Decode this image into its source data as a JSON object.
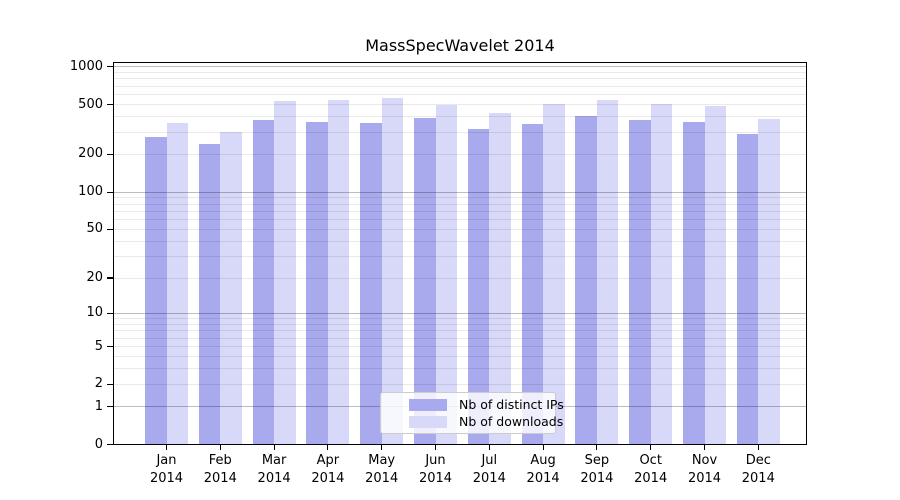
{
  "chart_data": {
    "type": "bar",
    "title": "MassSpecWavelet 2014",
    "categories": [
      "Jan",
      "Feb",
      "Mar",
      "Apr",
      "May",
      "Jun",
      "Jul",
      "Aug",
      "Sep",
      "Oct",
      "Nov",
      "Dec"
    ],
    "category_year": "2014",
    "series": [
      {
        "name": "Nb of distinct IPs",
        "color": "#a9a9ee",
        "values": [
          277,
          242,
          377,
          361,
          355,
          389,
          318,
          348,
          405,
          377,
          365,
          290
        ]
      },
      {
        "name": "Nb of downloads",
        "color": "#d8d8f8",
        "values": [
          355,
          304,
          534,
          544,
          567,
          496,
          431,
          502,
          544,
          505,
          484,
          382
        ]
      }
    ],
    "y_ticks": [
      0,
      1,
      2,
      5,
      10,
      20,
      50,
      100,
      200,
      500,
      1000
    ],
    "ylim": [
      0,
      1000
    ],
    "yscale": "log1p",
    "grid": "both",
    "legend_position": "lower-center-inside"
  }
}
